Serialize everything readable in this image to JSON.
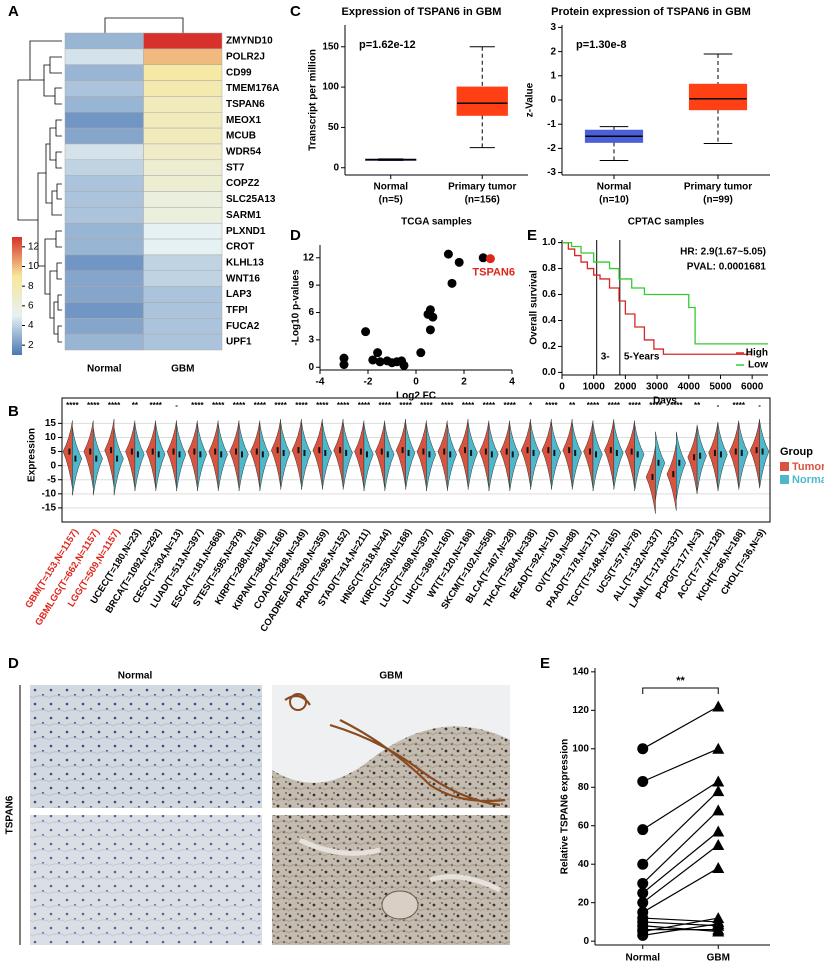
{
  "panel_labels": [
    "A",
    "C",
    "D",
    "E",
    "B",
    "D",
    "E"
  ],
  "chart_data": [
    {
      "type": "heatmap",
      "rows": [
        "ZMYND10",
        "POLR2J",
        "CD99",
        "TMEM176A",
        "TSPAN6",
        "MEOX1",
        "MCUB",
        "WDR54",
        "ST7",
        "COPZ2",
        "SLC25A13",
        "SARM1",
        "PLXND1",
        "CROT",
        "KLHL13",
        "WNT16",
        "LAP3",
        "TFPI",
        "FUCA2",
        "UPF1"
      ],
      "columns": [
        "Normal",
        "GBM"
      ],
      "values": [
        [
          3,
          13
        ],
        [
          4.5,
          10
        ],
        [
          3,
          8.5
        ],
        [
          3.5,
          8
        ],
        [
          3,
          7.5
        ],
        [
          2,
          7.5
        ],
        [
          2.5,
          7.5
        ],
        [
          4.5,
          7
        ],
        [
          4,
          6.5
        ],
        [
          3.5,
          6.5
        ],
        [
          3.5,
          6
        ],
        [
          3.5,
          6
        ],
        [
          3,
          5
        ],
        [
          3,
          5
        ],
        [
          2,
          4
        ],
        [
          2.5,
          4
        ],
        [
          2.5,
          3.5
        ],
        [
          2,
          3.5
        ],
        [
          2.5,
          3.5
        ],
        [
          3,
          3.5
        ]
      ],
      "colors": [
        "#4a78b3",
        "#e6f1f3",
        "#f8e79a",
        "#d7312b"
      ],
      "colorbar_lim": [
        1,
        13
      ],
      "colorbar_ticks": [
        2,
        4,
        6,
        8,
        10,
        12
      ]
    },
    {
      "type": "box",
      "title": "Expression of TSPAN6 in GBM",
      "annotation": "p=1.62e-12",
      "ylabel": "Transcript per million",
      "xlabel": "TCGA samples",
      "categories": [
        "Normal",
        "Primary tumor"
      ],
      "category_notes": [
        "(n=5)",
        "(n=156)"
      ],
      "boxes": [
        {
          "min": 9,
          "q1": 9.5,
          "median": 10,
          "q3": 10.5,
          "max": 11
        },
        {
          "min": 25,
          "q1": 65,
          "median": 80,
          "q3": 100,
          "max": 150
        }
      ],
      "colors": [
        "#2b3a8c",
        "#ff4015"
      ],
      "ylim": [
        -9,
        177
      ],
      "yticks": [
        0,
        50,
        100,
        150
      ]
    },
    {
      "type": "box",
      "title": "Protein expression of TSPAN6 in GBM",
      "annotation": "p=1.30e-8",
      "ylabel": "z-Value",
      "xlabel": "CPTAC samples",
      "categories": [
        "Normal",
        "Primary tumor"
      ],
      "category_notes": [
        "(n=10)",
        "(n=99)"
      ],
      "boxes": [
        {
          "min": -2.5,
          "q1": -1.75,
          "median": -1.5,
          "q3": -1.25,
          "max": -1.1
        },
        {
          "min": -1.8,
          "q1": -0.4,
          "median": 0.05,
          "q3": 0.65,
          "max": 1.9
        }
      ],
      "colors": [
        "#4a5fd8",
        "#ff4015"
      ],
      "ylim": [
        -3.1,
        3.1
      ],
      "yticks": [
        -3,
        -2,
        -1,
        0,
        1,
        2,
        3
      ]
    },
    {
      "type": "scatter",
      "xlabel": "Log2 FC",
      "ylabel": "-Log10 p-values",
      "x": [
        -3,
        -3,
        -2.1,
        -1.8,
        -1.5,
        -1.2,
        -1,
        -0.8,
        -0.6,
        -0.5,
        -1.6,
        0.5,
        0.6,
        0.7,
        0.6,
        0.2,
        1.35,
        1.5,
        1.8,
        2.8
      ],
      "y": [
        1,
        0.3,
        3.9,
        0.8,
        0.6,
        0.7,
        0.5,
        0.6,
        0.7,
        0.2,
        1.6,
        5.8,
        6.3,
        5.5,
        4.1,
        1.6,
        12.4,
        9.2,
        11.5,
        12
      ],
      "color": "#000000",
      "highlight": {
        "x": 3.1,
        "y": 11.9,
        "label": "TSPAN6",
        "color": "#e0251b"
      },
      "xlim": [
        -4,
        4
      ],
      "xticks": [
        -4,
        -2,
        0,
        2,
        4
      ],
      "ylim": [
        -0.3,
        13.4
      ],
      "yticks": [
        0,
        3,
        6,
        9,
        12
      ]
    },
    {
      "type": "km",
      "xlabel": "Days",
      "ylabel": "Overall survival",
      "annotations": [
        "HR: 2.9(1.67~5.05)",
        "PVAL: 0.0001681"
      ],
      "vlines": [
        1095,
        1825
      ],
      "vline_labels": [
        "3-",
        "5-Years"
      ],
      "series": [
        {
          "name": "High",
          "color": "#d62728",
          "x": [
            0,
            200,
            400,
            600,
            800,
            1000,
            1200,
            1500,
            1800,
            2000,
            2300,
            2600,
            2900,
            3200,
            6000
          ],
          "y": [
            1,
            0.95,
            0.9,
            0.85,
            0.8,
            0.75,
            0.72,
            0.65,
            0.55,
            0.45,
            0.35,
            0.25,
            0.18,
            0.14,
            0.14
          ]
        },
        {
          "name": "Low",
          "color": "#33cc33",
          "x": [
            0,
            300,
            600,
            1000,
            1500,
            1800,
            2200,
            2600,
            3000,
            4000,
            4200,
            6500
          ],
          "y": [
            1,
            0.97,
            0.92,
            0.85,
            0.8,
            0.72,
            0.65,
            0.6,
            0.6,
            0.5,
            0.22,
            0.22
          ]
        }
      ],
      "xlim": [
        0,
        6500
      ],
      "xticks": [
        0,
        1000,
        2000,
        3000,
        4000,
        5000,
        6000
      ],
      "ylim": [
        -0.02,
        1.02
      ],
      "yticks": [
        {
          "value": 0,
          "label": "0.0"
        },
        0.2,
        0.4,
        0.6,
        0.8,
        {
          "value": 1,
          "label": "1.0"
        }
      ]
    },
    {
      "type": "split_violin",
      "ylabel": "Expression",
      "legend_title": "Group",
      "categories": [
        "GBM(T=153,N=1157)",
        "GBMLGG(T=662,N=1157)",
        "LGG(T=509,N=1157)",
        "UCEC(T=180,N=23)",
        "BRCA(T=1092,N=292)",
        "CESC(T=304,N=13)",
        "LUAD(T=513,N=397)",
        "ESCA(T=181,N=668)",
        "STES(T=595,N=879)",
        "KIRP(T=288,N=168)",
        "KIPAN(T=884,N=168)",
        "COAD(T=288,N=349)",
        "COADREAD(T=380,N=359)",
        "PRAD(T=495,N=152)",
        "STAD(T=414,N=211)",
        "HNSC(T=518,N=44)",
        "KIRC(T=530,N=168)",
        "LUSC(T=498,N=397)",
        "LIHC(T=369,N=160)",
        "WT(T=120,N=168)",
        "SKCM(T=102,N=558)",
        "BLCA(T=407,N=28)",
        "THCA(T=504,N=338)",
        "READ(T=92,N=10)",
        "OV(T=419,N=88)",
        "PAAD(T=178,N=171)",
        "TGCT(T=148,N=165)",
        "UCS(T=57,N=78)",
        "ALL(T=132,N=337)",
        "LAML(T=173,N=337)",
        "PCPG(T=177,N=3)",
        "ACC(T=77,N=128)",
        "KICH(T=66,N=168)",
        "CHOL(T=36,N=9)"
      ],
      "label_colors": [
        "#e0251b",
        "#e0251b",
        "#e0251b",
        "#000000",
        "#000000",
        "#000000",
        "#000000",
        "#000000",
        "#000000",
        "#000000",
        "#000000",
        "#000000",
        "#000000",
        "#000000",
        "#000000",
        "#000000",
        "#000000",
        "#000000",
        "#000000",
        "#000000",
        "#000000",
        "#000000",
        "#000000",
        "#000000",
        "#000000",
        "#000000",
        "#000000",
        "#000000",
        "#000000",
        "#000000",
        "#000000",
        "#000000",
        "#000000",
        "#000000"
      ],
      "significance": [
        "****",
        "****",
        "****",
        "**",
        "****",
        "-",
        "****",
        "****",
        "****",
        "****",
        "****",
        "****",
        "****",
        "****",
        "****",
        "****",
        "****",
        "****",
        "****",
        "****",
        "****",
        "****",
        "*",
        "****",
        "**",
        "****",
        "****",
        "****",
        "****",
        "****",
        "**",
        "-",
        "****",
        "-"
      ],
      "series": [
        {
          "name": "Tumor",
          "color": "#d9533f",
          "values": [
            5,
            5,
            5.5,
            5,
            5,
            5,
            5,
            5,
            5,
            5,
            5.5,
            5.5,
            5.5,
            5.5,
            5,
            5,
            5.5,
            5,
            5,
            5.5,
            5,
            5,
            5.5,
            5.5,
            5.5,
            5,
            5.5,
            5,
            -4,
            -3,
            3,
            4.5,
            5,
            5.5
          ]
        },
        {
          "name": "Normal",
          "color": "#4db8cc",
          "values": [
            2.5,
            2.5,
            2.5,
            4,
            4,
            4,
            4,
            4,
            4,
            4,
            4.5,
            4.5,
            4.5,
            4.5,
            4,
            4,
            4.5,
            4,
            4,
            4.5,
            4,
            4,
            4.5,
            4.5,
            4.5,
            4,
            4.5,
            4,
            1,
            1,
            3.5,
            4,
            4.5,
            5
          ]
        }
      ],
      "ylim": [
        -20,
        24
      ],
      "yticks": [
        -15,
        -10,
        -5,
        0,
        5,
        10,
        15
      ],
      "grid": true
    },
    {
      "type": "paired",
      "ylabel": "Relative TSPAN6 expression",
      "annotation": "**",
      "categories": [
        "Normal",
        "GBM"
      ],
      "values": [
        [
          100,
          83,
          58,
          40,
          30,
          25,
          20,
          15,
          12,
          10,
          8,
          6,
          5,
          3
        ],
        [
          122,
          100,
          83,
          78,
          68,
          57,
          50,
          38,
          10,
          8,
          5,
          6,
          12,
          9
        ]
      ],
      "color": "#000000",
      "ylim": [
        -2,
        142
      ],
      "yticks": [
        0,
        20,
        40,
        60,
        80,
        100,
        120,
        140
      ]
    }
  ],
  "ihc": {
    "columns": [
      "Normal",
      "GBM"
    ],
    "row_label": "TSPAN6"
  }
}
